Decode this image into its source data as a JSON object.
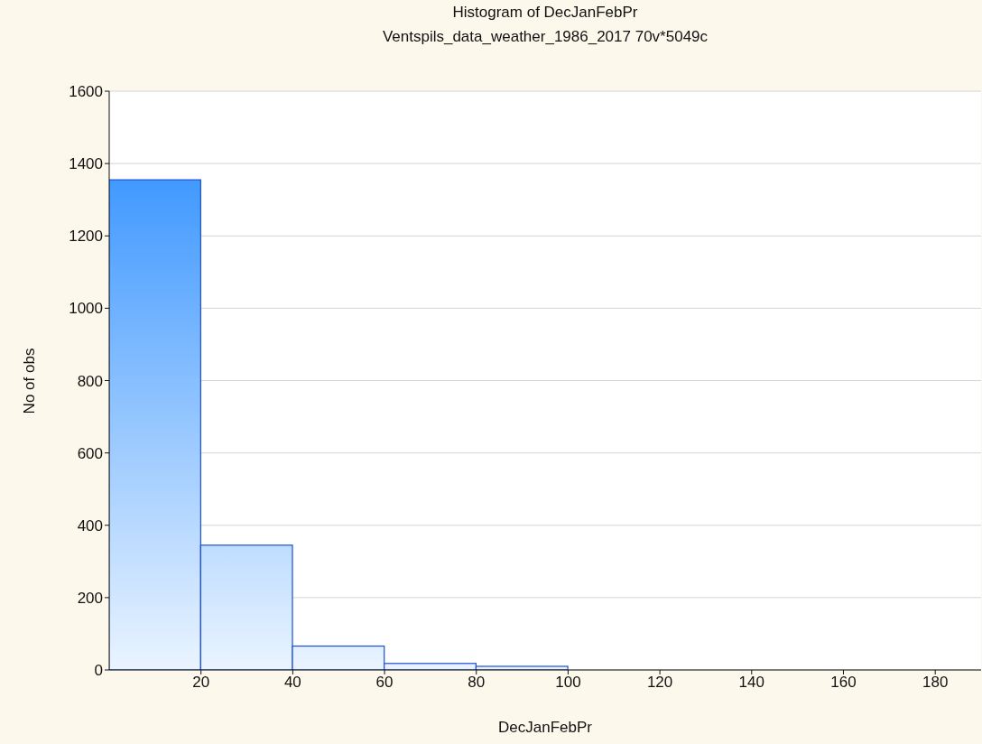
{
  "chart_data": {
    "type": "histogram",
    "title": "Histogram of DecJanFebPr",
    "subtitle": "Ventspils_data_weather_1986_2017 70v*5049c",
    "xlabel": "DecJanFebPr",
    "ylabel": "No of obs",
    "bins": [
      0,
      20,
      40,
      60,
      80,
      100
    ],
    "values": [
      1355,
      345,
      66,
      18,
      10
    ],
    "color": "#1a4fd6",
    "xlim": [
      0,
      190
    ],
    "xticks": [
      20,
      40,
      60,
      80,
      100,
      120,
      140,
      160,
      180
    ],
    "ylim": [
      0,
      1600
    ],
    "yticks": [
      0,
      200,
      400,
      600,
      800,
      1000,
      1200,
      1400,
      1600
    ],
    "grid": "y"
  }
}
